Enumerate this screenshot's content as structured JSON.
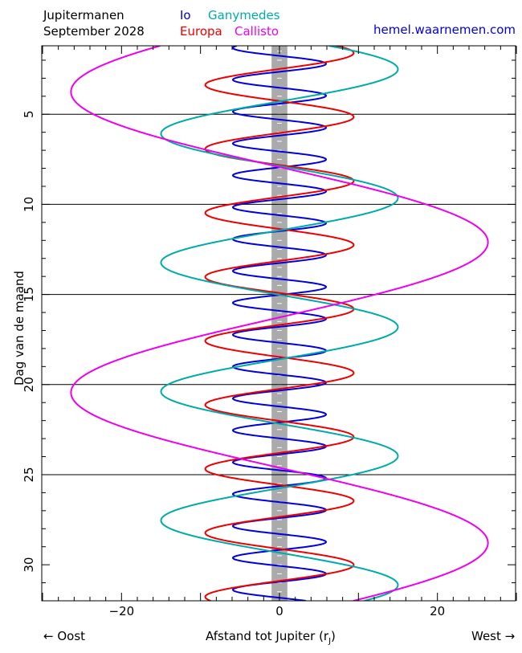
{
  "header": {
    "title_line1": "Jupitermanen",
    "title_line2": "September 2028",
    "legend": [
      {
        "name": "Io",
        "color": "#0000dd"
      },
      {
        "name": "Ganymedes",
        "color": "#00aaaa"
      },
      {
        "name": "Europa",
        "color": "#ee0000"
      },
      {
        "name": "Callisto",
        "color": "#ee00ee"
      }
    ],
    "website": "hemel.waarnemen.com",
    "website_color": "#0000dd"
  },
  "footer": {
    "left": "← Oost",
    "center_main": "Afstand tot Jupiter (r",
    "center_sub": "J",
    "center_close": ")",
    "right": "West →"
  },
  "chart_data": {
    "type": "line",
    "ylabel": "Dag van de maand",
    "xlim": [
      -30,
      30
    ],
    "ylim": [
      1.2,
      32
    ],
    "y_inverted": true,
    "xticks": [
      -20,
      0,
      20
    ],
    "yticks": [
      5,
      10,
      15,
      20,
      25,
      30
    ],
    "horizontal_gridlines": [
      5,
      10,
      15,
      20,
      25
    ],
    "jupiter_band": {
      "halfwidth": 1,
      "color": "#aaaaaa"
    },
    "series": [
      {
        "name": "Io",
        "color": "#0000dd",
        "amplitude": 5.9,
        "period_days": 1.769,
        "peak_day": 2.2
      },
      {
        "name": "Europa",
        "color": "#ee0000",
        "amplitude": 9.4,
        "period_days": 3.551,
        "peak_day": 1.6
      },
      {
        "name": "Ganymedes",
        "color": "#00aaaa",
        "amplitude": 15.0,
        "period_days": 7.155,
        "peak_day": 2.5
      },
      {
        "name": "Callisto",
        "color": "#ee00ee",
        "amplitude": 26.4,
        "period_days": 16.69,
        "peak_day": 12.1
      }
    ]
  }
}
